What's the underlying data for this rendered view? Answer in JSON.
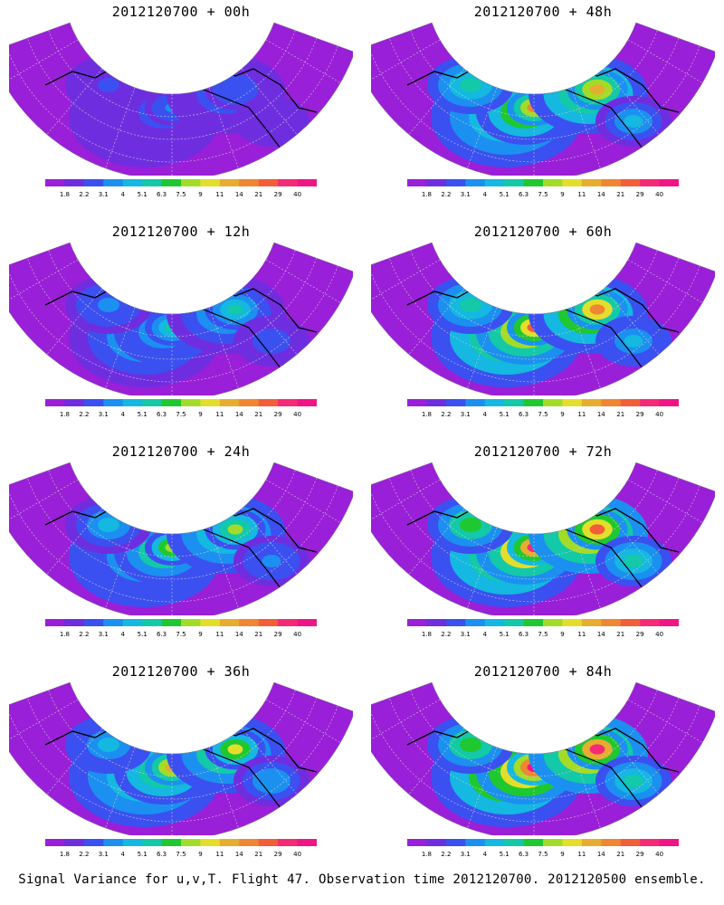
{
  "panels": [
    {
      "title": "2012120700 + 00h",
      "intensity": 0.15
    },
    {
      "title": "2012120700 + 48h",
      "intensity": 0.7
    },
    {
      "title": "2012120700 + 12h",
      "intensity": 0.35
    },
    {
      "title": "2012120700 + 60h",
      "intensity": 0.8
    },
    {
      "title": "2012120700 + 24h",
      "intensity": 0.5
    },
    {
      "title": "2012120700 + 72h",
      "intensity": 0.88
    },
    {
      "title": "2012120700 + 36h",
      "intensity": 0.62
    },
    {
      "title": "2012120700 + 84h",
      "intensity": 0.95
    }
  ],
  "colorbar": {
    "labels": [
      "1.8",
      "2.2",
      "3.1",
      "4",
      "5.1",
      "6.3",
      "7.5",
      "9",
      "11",
      "14",
      "21",
      "29",
      "40"
    ],
    "colors": [
      "#9a1fd8",
      "#6e2ee0",
      "#3b50f0",
      "#1b90f0",
      "#14b8e0",
      "#13c9a8",
      "#1fc830",
      "#a3dc28",
      "#e4de2a",
      "#e6ad30",
      "#ef8633",
      "#f25e3a",
      "#f52a77",
      "#f01585"
    ]
  },
  "footer": "Signal Variance for u,v,T. Flight 47. Observation time 2012120700. 2012120500 ensemble."
}
